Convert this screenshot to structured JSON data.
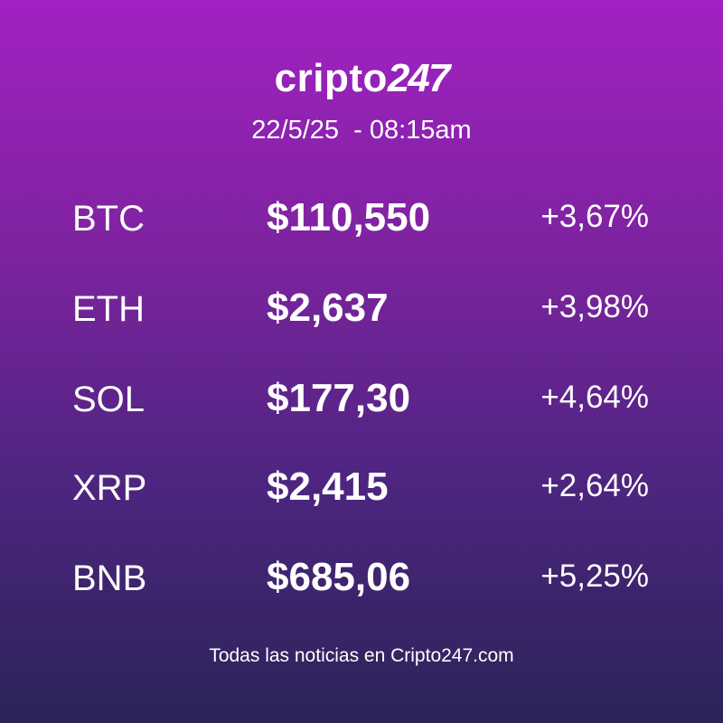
{
  "header": {
    "logo": {
      "text": "cripto",
      "digits": "247"
    },
    "date": "22/5/25  - 08:15am"
  },
  "table": {
    "rows": [
      [
        "BTC",
        "$110,550",
        "+3,67%"
      ],
      [
        "ETH",
        "$2,637",
        "+3,98%"
      ],
      [
        "SOL",
        "$177,30",
        "+4,64%"
      ],
      [
        "XRP",
        "$2,415",
        "+2,64%"
      ],
      [
        "BNB",
        "$685,06",
        "+5,25%"
      ]
    ]
  },
  "footer": "Todas las noticias en Cripto247.com"
}
